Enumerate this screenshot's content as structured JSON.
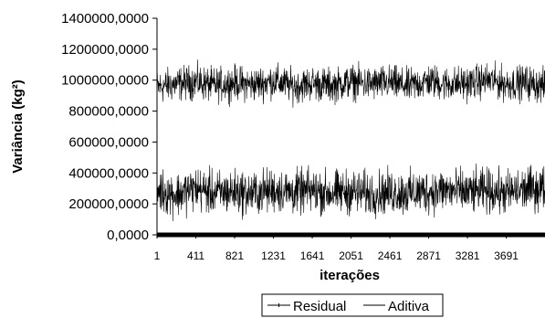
{
  "chart_data": {
    "type": "line",
    "title": "",
    "xlabel": "iterações",
    "ylabel": "Variância (kg²)",
    "xlim": [
      1,
      4100
    ],
    "ylim": [
      0,
      1400000
    ],
    "y_ticks": [
      "0,0000",
      "200000,0000",
      "400000,0000",
      "600000,0000",
      "800000,0000",
      "1000000,0000",
      "1200000,0000",
      "1400000,0000"
    ],
    "y_tick_values": [
      0,
      200000,
      400000,
      600000,
      800000,
      1000000,
      1200000,
      1400000
    ],
    "x_ticks": [
      "1",
      "411",
      "821",
      "1231",
      "1641",
      "2051",
      "2461",
      "2871",
      "3281",
      "3691"
    ],
    "x_tick_values": [
      1,
      411,
      821,
      1231,
      1641,
      2051,
      2461,
      2871,
      3281,
      3691
    ],
    "legend_position": "bottom-center",
    "series": [
      {
        "name": "Residual",
        "mean": 960000,
        "typical_range": [
          860000,
          1100000
        ],
        "x": [
          1,
          200,
          411,
          600,
          821,
          1000,
          1231,
          1450,
          1641,
          1850,
          2051,
          2250,
          2461,
          2650,
          2871,
          3050,
          3281,
          3500,
          3691,
          3900,
          4100
        ],
        "values": [
          955000,
          975000,
          990000,
          965000,
          985000,
          970000,
          995000,
          960000,
          980000,
          965000,
          990000,
          975000,
          985000,
          960000,
          995000,
          975000,
          980000,
          1000000,
          975000,
          985000,
          960000
        ]
      },
      {
        "name": "Aditiva",
        "mean": 275000,
        "typical_range": [
          150000,
          460000
        ],
        "x": [
          1,
          200,
          411,
          600,
          821,
          1000,
          1231,
          1450,
          1641,
          1850,
          2051,
          2250,
          2461,
          2650,
          2871,
          3050,
          3281,
          3500,
          3691,
          3900,
          4100
        ],
        "values": [
          290000,
          260000,
          300000,
          270000,
          280000,
          265000,
          290000,
          275000,
          285000,
          270000,
          280000,
          265000,
          275000,
          270000,
          280000,
          290000,
          275000,
          285000,
          270000,
          295000,
          305000
        ]
      }
    ]
  }
}
